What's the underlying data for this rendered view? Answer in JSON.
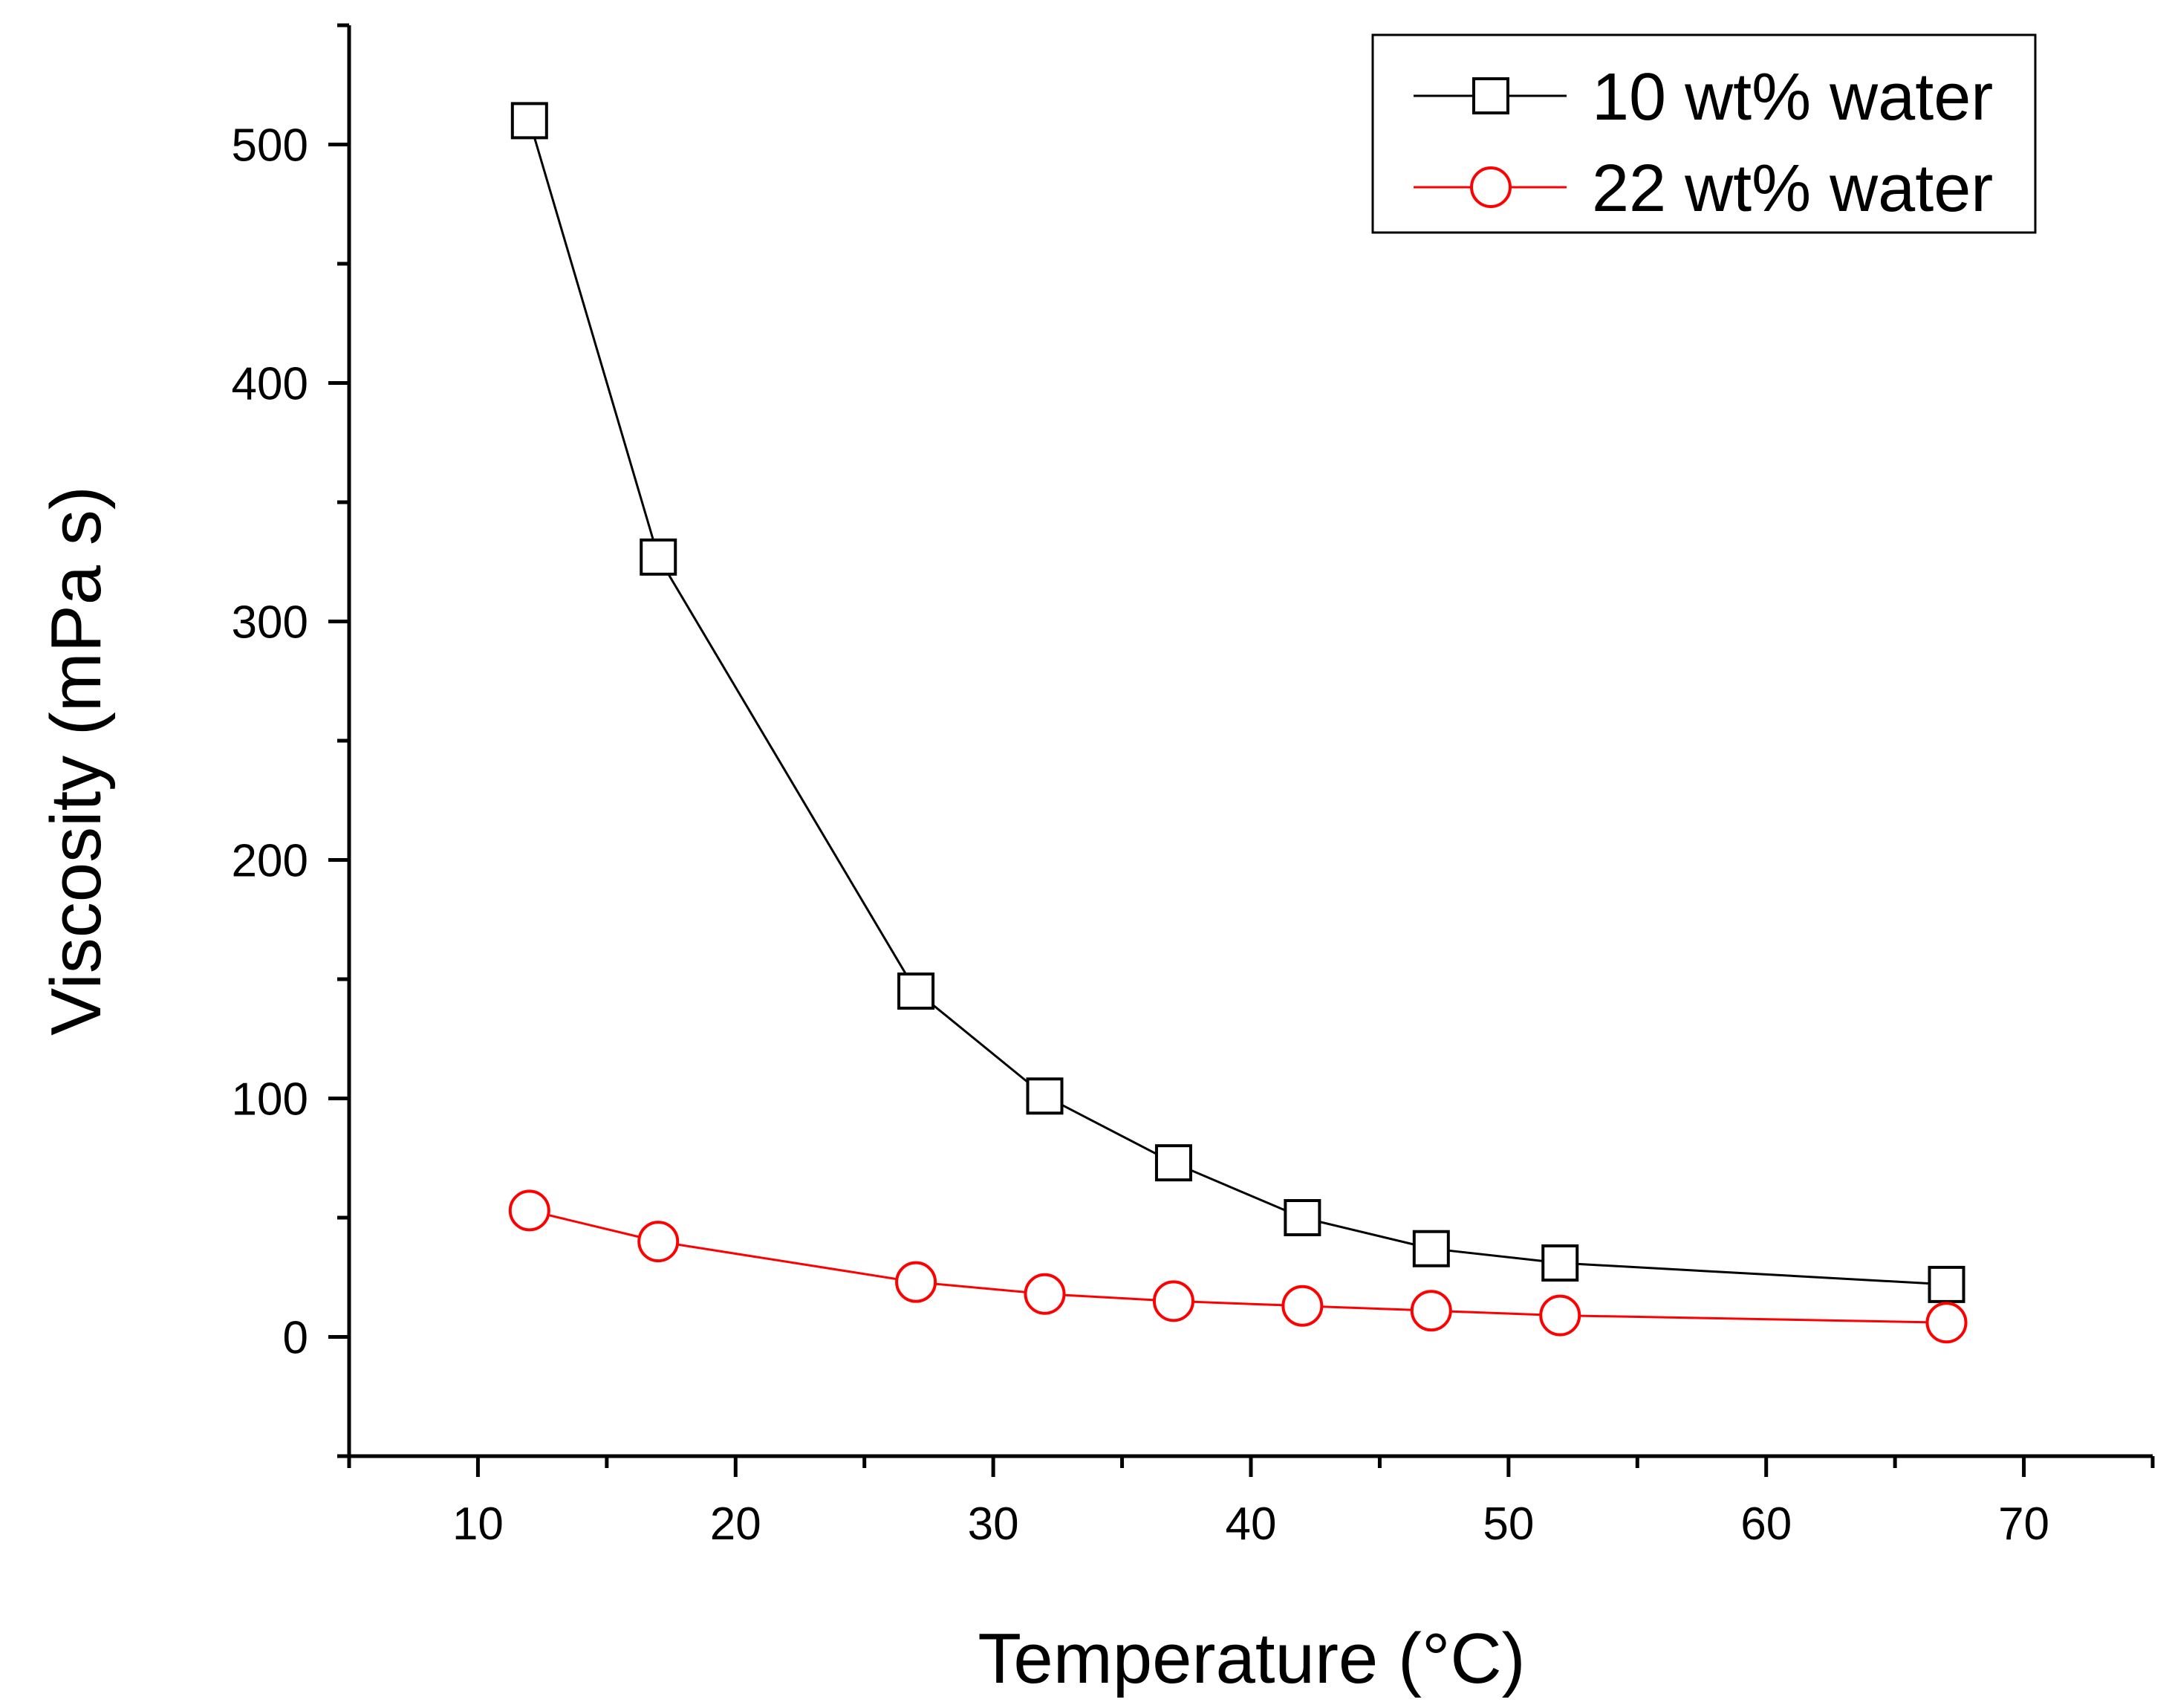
{
  "chart_data": {
    "type": "line",
    "title": "",
    "xlabel": "Temperature (°C)",
    "ylabel": "Viscosity (mPa s)",
    "xlim": [
      5,
      75
    ],
    "ylim": [
      -50,
      550
    ],
    "xticks": [
      10,
      20,
      30,
      40,
      50,
      60,
      70
    ],
    "xtick_labels": [
      "10",
      "20",
      "30",
      "40",
      "50",
      "60",
      "70"
    ],
    "yticks": [
      0,
      100,
      200,
      300,
      400,
      500
    ],
    "ytick_labels": [
      "0",
      "100",
      "200",
      "300",
      "400",
      "500"
    ],
    "grid": false,
    "legend_position": "top-right",
    "series": [
      {
        "name": "10 wt% water",
        "color": "#000000",
        "marker": "square",
        "x": [
          12,
          17,
          27,
          32,
          37,
          42,
          47,
          52,
          67
        ],
        "y": [
          510,
          327,
          145,
          101,
          73,
          50,
          37,
          31,
          22
        ]
      },
      {
        "name": "22 wt% water",
        "color": "#ff0000",
        "marker": "circle",
        "x": [
          12,
          17,
          27,
          32,
          37,
          42,
          47,
          52,
          67
        ],
        "y": [
          53,
          40,
          23,
          18,
          15,
          13,
          11,
          9,
          6
        ]
      }
    ]
  }
}
